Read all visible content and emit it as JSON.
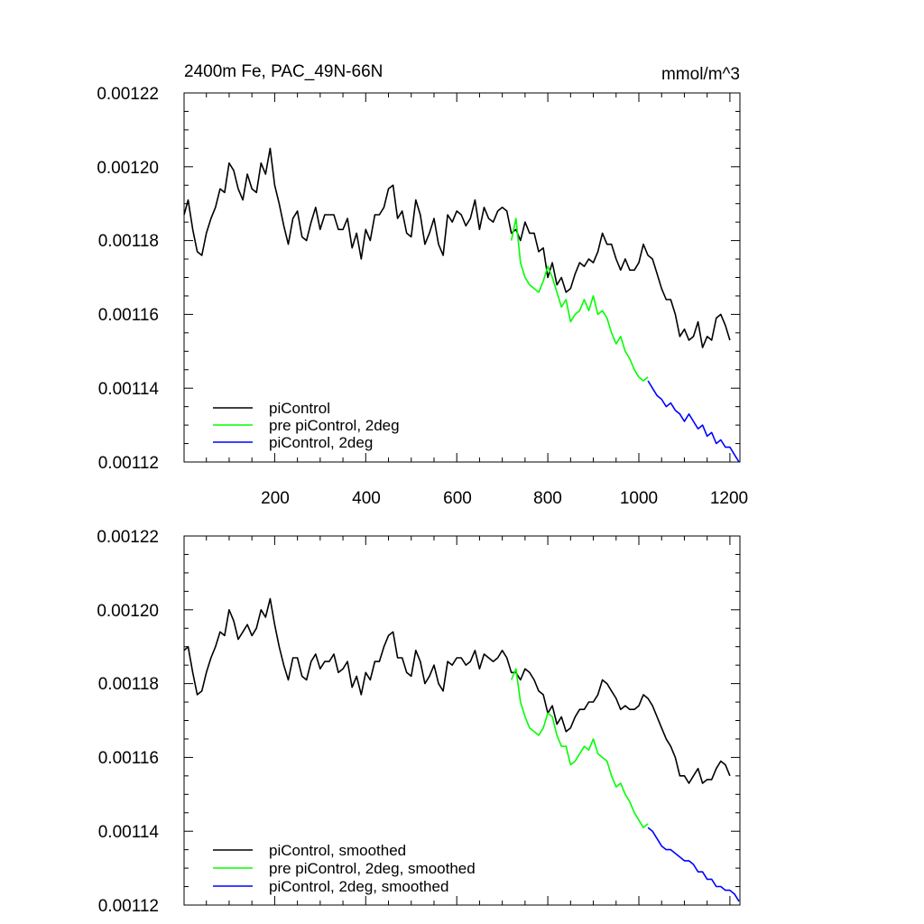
{
  "chart_data": [
    {
      "type": "line",
      "title": "2400m Fe, PAC_49N-66N",
      "units": "mmol/m^3",
      "xlim": [
        1,
        1222
      ],
      "ylim": [
        0.00112,
        0.00122
      ],
      "x_ticks": [
        "200",
        "400",
        "600",
        "800",
        "1000",
        "1200"
      ],
      "y_ticks": [
        "0.00122",
        "0.00120",
        "0.00118",
        "0.00116",
        "0.00114",
        "0.00112"
      ],
      "legend_position": "bottom-left",
      "series": [
        {
          "name": "piControl",
          "color": "#000000",
          "x": [
            1,
            10,
            20,
            30,
            40,
            50,
            60,
            70,
            80,
            90,
            100,
            110,
            120,
            130,
            140,
            150,
            160,
            170,
            180,
            190,
            200,
            210,
            220,
            230,
            240,
            250,
            260,
            270,
            280,
            290,
            300,
            310,
            320,
            330,
            340,
            350,
            360,
            370,
            380,
            390,
            400,
            410,
            420,
            430,
            440,
            450,
            460,
            470,
            480,
            490,
            500,
            510,
            520,
            530,
            540,
            550,
            560,
            570,
            580,
            590,
            600,
            610,
            620,
            630,
            640,
            650,
            660,
            670,
            680,
            690,
            700,
            710,
            720,
            730,
            740,
            750,
            760,
            770,
            780,
            790,
            800,
            810,
            820,
            830,
            840,
            850,
            860,
            870,
            880,
            890,
            900,
            910,
            920,
            930,
            940,
            950,
            960,
            970,
            980,
            990,
            1000,
            1010,
            1020,
            1030,
            1040,
            1050,
            1060,
            1070,
            1080,
            1090,
            1100,
            1110,
            1120,
            1130,
            1140,
            1150,
            1160,
            1170,
            1180,
            1190,
            1200
          ],
          "y": [
            0.001187,
            0.001191,
            0.001183,
            0.001177,
            0.001176,
            0.001182,
            0.001186,
            0.001189,
            0.001194,
            0.001193,
            0.001201,
            0.001199,
            0.001194,
            0.001191,
            0.001198,
            0.001194,
            0.001193,
            0.001201,
            0.001198,
            0.001205,
            0.001195,
            0.00119,
            0.001184,
            0.001179,
            0.001186,
            0.001188,
            0.001181,
            0.00118,
            0.001185,
            0.001189,
            0.001183,
            0.001187,
            0.001187,
            0.001187,
            0.001183,
            0.001183,
            0.001186,
            0.001178,
            0.001182,
            0.001175,
            0.001183,
            0.00118,
            0.001187,
            0.001187,
            0.001189,
            0.001194,
            0.001195,
            0.001186,
            0.001188,
            0.001182,
            0.001181,
            0.001191,
            0.001187,
            0.001179,
            0.001182,
            0.001186,
            0.001179,
            0.001176,
            0.001187,
            0.001185,
            0.001188,
            0.001187,
            0.001184,
            0.001186,
            0.001191,
            0.001183,
            0.001189,
            0.001186,
            0.001185,
            0.001188,
            0.001189,
            0.001188,
            0.001182,
            0.001183,
            0.00118,
            0.001185,
            0.001182,
            0.001182,
            0.001177,
            0.001178,
            0.00117,
            0.001174,
            0.001168,
            0.00117,
            0.001166,
            0.001167,
            0.001171,
            0.001174,
            0.001173,
            0.001175,
            0.001174,
            0.001177,
            0.001182,
            0.001179,
            0.001179,
            0.001175,
            0.001172,
            0.001175,
            0.001172,
            0.001172,
            0.001174,
            0.001179,
            0.001176,
            0.001175,
            0.001171,
            0.001167,
            0.001164,
            0.001164,
            0.00116,
            0.001154,
            0.001156,
            0.001153,
            0.001154,
            0.001158,
            0.001151,
            0.001154,
            0.001153,
            0.001159,
            0.00116,
            0.001157,
            0.001153
          ]
        },
        {
          "name": "pre piControl, 2deg",
          "color": "#00ff00",
          "x": [
            720,
            730,
            740,
            750,
            760,
            770,
            780,
            790,
            800,
            810,
            820,
            830,
            840,
            850,
            860,
            870,
            880,
            890,
            900,
            910,
            920,
            930,
            940,
            950,
            960,
            970,
            980,
            990,
            1000,
            1010,
            1020
          ],
          "y": [
            0.00118,
            0.001186,
            0.001174,
            0.00117,
            0.001168,
            0.001167,
            0.001166,
            0.001169,
            0.001173,
            0.00117,
            0.001166,
            0.001162,
            0.001164,
            0.001158,
            0.00116,
            0.001161,
            0.001164,
            0.001161,
            0.001165,
            0.00116,
            0.001161,
            0.001159,
            0.001155,
            0.001152,
            0.001154,
            0.00115,
            0.001148,
            0.001145,
            0.001143,
            0.001142,
            0.001143
          ]
        },
        {
          "name": "piControl, 2deg",
          "color": "#0000ff",
          "x": [
            1020,
            1030,
            1040,
            1050,
            1060,
            1070,
            1080,
            1090,
            1100,
            1110,
            1120,
            1130,
            1140,
            1150,
            1160,
            1170,
            1180,
            1190,
            1200,
            1210,
            1220
          ],
          "y": [
            0.001142,
            0.00114,
            0.001138,
            0.001137,
            0.001135,
            0.001136,
            0.001134,
            0.001133,
            0.001131,
            0.001133,
            0.001131,
            0.001129,
            0.00113,
            0.001127,
            0.001128,
            0.001125,
            0.001126,
            0.001124,
            0.001124,
            0.001122,
            0.00112
          ]
        }
      ]
    },
    {
      "type": "line",
      "xlim": [
        1,
        1222
      ],
      "ylim": [
        0.00112,
        0.00122
      ],
      "y_ticks": [
        "0.00122",
        "0.00120",
        "0.00118",
        "0.00116",
        "0.00114",
        "0.00112"
      ],
      "legend_position": "bottom-left",
      "series": [
        {
          "name": "piControl, smoothed",
          "color": "#000000",
          "x": [
            1,
            10,
            20,
            30,
            40,
            50,
            60,
            70,
            80,
            90,
            100,
            110,
            120,
            130,
            140,
            150,
            160,
            170,
            180,
            190,
            200,
            210,
            220,
            230,
            240,
            250,
            260,
            270,
            280,
            290,
            300,
            310,
            320,
            330,
            340,
            350,
            360,
            370,
            380,
            390,
            400,
            410,
            420,
            430,
            440,
            450,
            460,
            470,
            480,
            490,
            500,
            510,
            520,
            530,
            540,
            550,
            560,
            570,
            580,
            590,
            600,
            610,
            620,
            630,
            640,
            650,
            660,
            670,
            680,
            690,
            700,
            710,
            720,
            730,
            740,
            750,
            760,
            770,
            780,
            790,
            800,
            810,
            820,
            830,
            840,
            850,
            860,
            870,
            880,
            890,
            900,
            910,
            920,
            930,
            940,
            950,
            960,
            970,
            980,
            990,
            1000,
            1010,
            1020,
            1030,
            1040,
            1050,
            1060,
            1070,
            1080,
            1090,
            1100,
            1110,
            1120,
            1130,
            1140,
            1150,
            1160,
            1170,
            1180,
            1190,
            1200
          ],
          "y": [
            0.001189,
            0.00119,
            0.001183,
            0.001177,
            0.001178,
            0.001183,
            0.001187,
            0.00119,
            0.001194,
            0.001193,
            0.0012,
            0.001197,
            0.001192,
            0.001194,
            0.001196,
            0.001193,
            0.001195,
            0.0012,
            0.001198,
            0.001203,
            0.001196,
            0.00119,
            0.001185,
            0.001181,
            0.001187,
            0.001187,
            0.001182,
            0.001181,
            0.001186,
            0.001188,
            0.001184,
            0.001186,
            0.001186,
            0.001188,
            0.001183,
            0.001184,
            0.001186,
            0.001179,
            0.001182,
            0.001177,
            0.001183,
            0.001181,
            0.001186,
            0.001186,
            0.00119,
            0.001193,
            0.001194,
            0.001187,
            0.001187,
            0.001183,
            0.001182,
            0.001189,
            0.001186,
            0.00118,
            0.001182,
            0.001185,
            0.00118,
            0.001178,
            0.001186,
            0.001185,
            0.001187,
            0.001187,
            0.001185,
            0.001186,
            0.001189,
            0.001184,
            0.001188,
            0.001187,
            0.001186,
            0.001187,
            0.001189,
            0.001187,
            0.001183,
            0.001183,
            0.001181,
            0.001184,
            0.001183,
            0.001181,
            0.001178,
            0.001177,
            0.001172,
            0.001174,
            0.001169,
            0.001171,
            0.001167,
            0.001168,
            0.001171,
            0.001173,
            0.001173,
            0.001175,
            0.001175,
            0.001177,
            0.001181,
            0.00118,
            0.001178,
            0.001176,
            0.001173,
            0.001174,
            0.001173,
            0.001173,
            0.001174,
            0.001177,
            0.001176,
            0.001174,
            0.001171,
            0.001168,
            0.001165,
            0.001163,
            0.00116,
            0.001155,
            0.001155,
            0.001153,
            0.001155,
            0.001157,
            0.001153,
            0.001154,
            0.001154,
            0.001157,
            0.001159,
            0.001158,
            0.001155
          ]
        },
        {
          "name": "pre piControl, 2deg, smoothed",
          "color": "#00ff00",
          "x": [
            720,
            730,
            740,
            750,
            760,
            770,
            780,
            790,
            800,
            810,
            820,
            830,
            840,
            850,
            860,
            870,
            880,
            890,
            900,
            910,
            920,
            930,
            940,
            950,
            960,
            970,
            980,
            990,
            1000,
            1010,
            1020
          ],
          "y": [
            0.001181,
            0.001184,
            0.001175,
            0.001171,
            0.001168,
            0.001167,
            0.001166,
            0.001168,
            0.001172,
            0.001171,
            0.001166,
            0.001163,
            0.001163,
            0.001158,
            0.001159,
            0.001161,
            0.001163,
            0.001162,
            0.001165,
            0.001161,
            0.00116,
            0.001159,
            0.001155,
            0.001152,
            0.001153,
            0.00115,
            0.001148,
            0.001145,
            0.001143,
            0.001141,
            0.001142
          ]
        },
        {
          "name": "piControl, 2deg, smoothed",
          "color": "#0000ff",
          "x": [
            1020,
            1030,
            1040,
            1050,
            1060,
            1070,
            1080,
            1090,
            1100,
            1110,
            1120,
            1130,
            1140,
            1150,
            1160,
            1170,
            1180,
            1190,
            1200,
            1210,
            1220
          ],
          "y": [
            0.001141,
            0.00114,
            0.001138,
            0.001136,
            0.001135,
            0.001135,
            0.001134,
            0.001133,
            0.001132,
            0.001132,
            0.001131,
            0.001129,
            0.001129,
            0.001127,
            0.001127,
            0.001125,
            0.001125,
            0.001124,
            0.001124,
            0.001123,
            0.001121
          ]
        }
      ]
    }
  ]
}
